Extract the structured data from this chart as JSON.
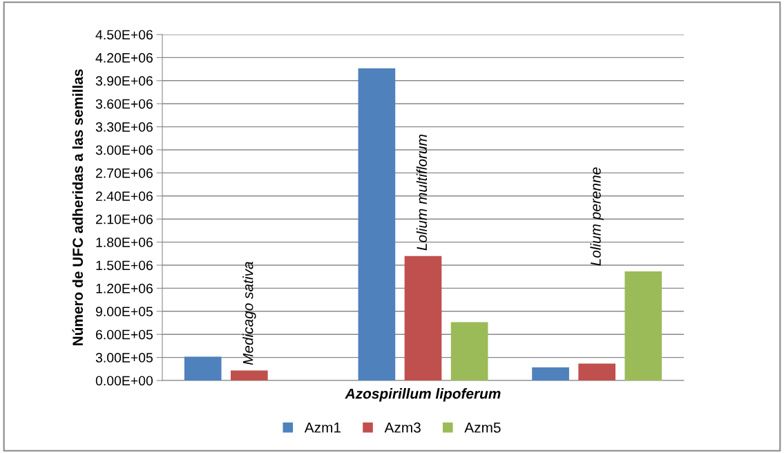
{
  "chart_data": {
    "type": "bar",
    "xlabel": "Azospirillum lipoferum",
    "ylabel": "Número de UFC adheridas a las semillas",
    "categories": [
      "Medicago sativa",
      "Lolium multiflorum",
      "Lolium perenne"
    ],
    "series": [
      {
        "name": "Azm1",
        "color": "#4f81bd",
        "values": [
          310000,
          4060000,
          170000
        ]
      },
      {
        "name": "Azm3",
        "color": "#c0504d",
        "values": [
          130000,
          1620000,
          220000
        ]
      },
      {
        "name": "Azm5",
        "color": "#9bbb59",
        "values": [
          null,
          760000,
          1420000
        ]
      }
    ],
    "ylim": [
      0,
      4500000
    ],
    "yticks": [
      {
        "value": 0,
        "label": "0.00E+00"
      },
      {
        "value": 300000,
        "label": "3.00E+05"
      },
      {
        "value": 600000,
        "label": "6.00E+05"
      },
      {
        "value": 900000,
        "label": "9.00E+05"
      },
      {
        "value": 1200000,
        "label": "1.20E+06"
      },
      {
        "value": 1500000,
        "label": "1.50E+06"
      },
      {
        "value": 1800000,
        "label": "1.80E+06"
      },
      {
        "value": 2100000,
        "label": "2.10E+06"
      },
      {
        "value": 2400000,
        "label": "2.40E+06"
      },
      {
        "value": 2700000,
        "label": "2.70E+06"
      },
      {
        "value": 3000000,
        "label": "3.00E+06"
      },
      {
        "value": 3300000,
        "label": "3.30E+06"
      },
      {
        "value": 3600000,
        "label": "3.60E+06"
      },
      {
        "value": 3900000,
        "label": "3.90E+06"
      },
      {
        "value": 4200000,
        "label": "4.20E+06"
      },
      {
        "value": 4500000,
        "label": "4.50E+06"
      }
    ],
    "grid": "y",
    "legend": "bottom"
  }
}
